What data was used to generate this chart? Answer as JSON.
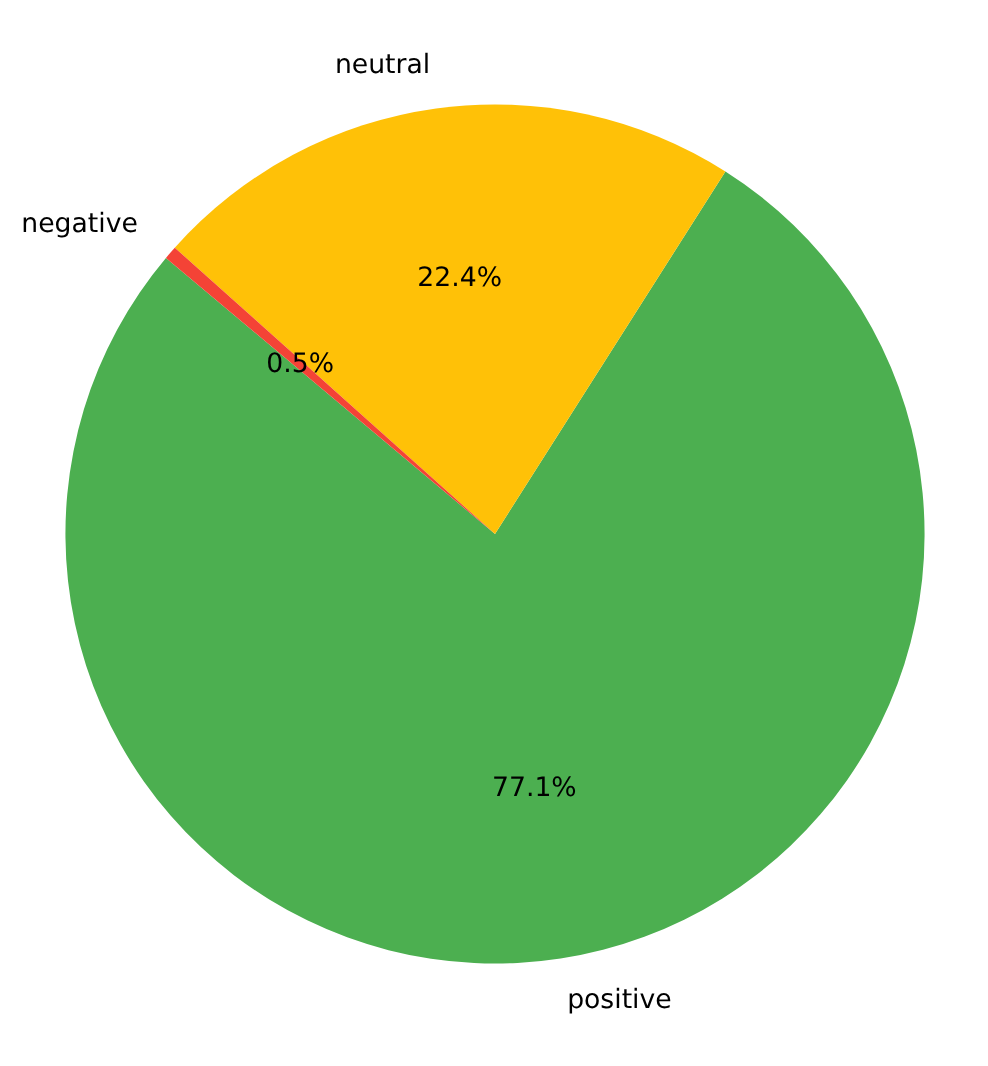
{
  "chart_data": {
    "type": "pie",
    "categories": [
      "positive",
      "neutral",
      "negative"
    ],
    "values": [
      77.1,
      22.4,
      0.5
    ],
    "colors": [
      "#4caf50",
      "#ffc107",
      "#f44336"
    ],
    "value_labels": [
      "77.1%",
      "22.4%",
      "0.5%"
    ]
  }
}
